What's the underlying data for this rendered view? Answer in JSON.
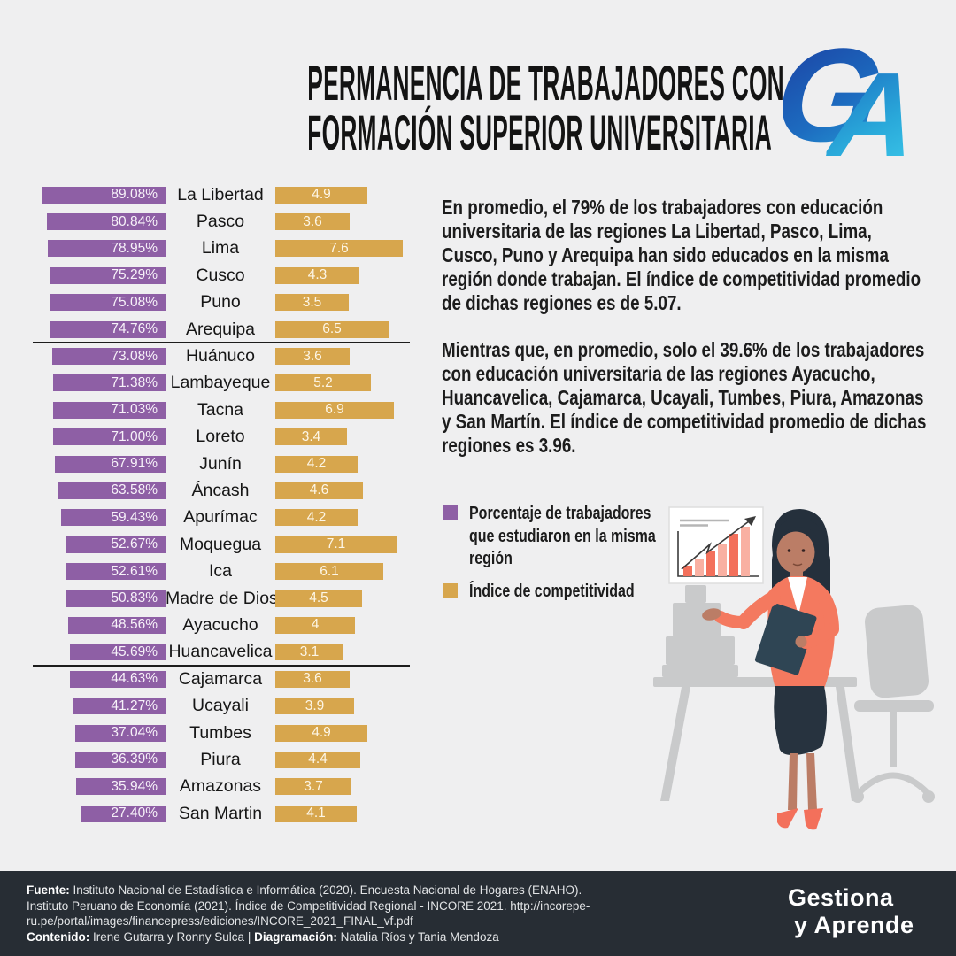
{
  "header": {
    "title_line1": "PERMANENCIA DE TRABAJADORES CON",
    "title_line2": "FORMACIÓN SUPERIOR UNIVERSITARIA",
    "logo": {
      "g": "G",
      "a": "A"
    }
  },
  "chart_data": {
    "type": "bar",
    "title": "Permanencia de trabajadores con formación superior universitaria",
    "categories": [
      "La Libertad",
      "Pasco",
      "Lima",
      "Cusco",
      "Puno",
      "Arequipa",
      "Huánuco",
      "Lambayeque",
      "Tacna",
      "Loreto",
      "Junín",
      "Áncash",
      "Apurímac",
      "Moquegua",
      "Ica",
      "Madre de Dios",
      "Ayacucho",
      "Huancavelica",
      "Cajamarca",
      "Ucayali",
      "Tumbes",
      "Piura",
      "Amazonas",
      "San Martin"
    ],
    "series": [
      {
        "name": "Porcentaje de trabajadores que estudiaron en la misma región",
        "color": "#8e5fa5",
        "values": [
          89.08,
          80.84,
          78.95,
          75.29,
          75.08,
          74.76,
          73.08,
          71.38,
          71.03,
          71.0,
          67.91,
          63.58,
          59.43,
          52.67,
          52.61,
          50.83,
          48.56,
          45.69,
          44.63,
          41.27,
          37.04,
          36.39,
          35.94,
          27.4
        ],
        "labels": [
          "89.08%",
          "80.84%",
          "78.95%",
          "75.29%",
          "75.08%",
          "74.76%",
          "73.08%",
          "71.38%",
          "71.03%",
          "71.00%",
          "67.91%",
          "63.58%",
          "59.43%",
          "52.67%",
          "52.61%",
          "50.83%",
          "48.56%",
          "45.69%",
          "44.63%",
          "41.27%",
          "37.04%",
          "36.39%",
          "35.94%",
          "27.40%"
        ]
      },
      {
        "name": "Índice de competitividad",
        "color": "#d7a64d",
        "values": [
          4.9,
          3.6,
          7.6,
          4.3,
          3.5,
          6.5,
          3.6,
          5.2,
          6.9,
          3.4,
          4.2,
          4.6,
          4.2,
          7.1,
          6.1,
          4.5,
          4.0,
          3.1,
          3.6,
          3.9,
          4.9,
          4.4,
          3.7,
          4.1
        ],
        "labels": [
          "4.9",
          "3.6",
          "7.6",
          "4.3",
          "3.5",
          "6.5",
          "3.6",
          "5.2",
          "6.9",
          "3.4",
          "4.2",
          "4.6",
          "4.2",
          "7.1",
          "6.1",
          "4.5",
          "4",
          "3.1",
          "3.6",
          "3.9",
          "4.9",
          "4.4",
          "3.7",
          "4.1"
        ]
      }
    ],
    "group_separator_after_indices": [
      5,
      17
    ],
    "legend_position": "right",
    "grid": false
  },
  "insights": {
    "p1": "En promedio, el 79% de los trabajadores con educación universitaria  de las regiones La Libertad, Pasco, Lima, Cusco, Puno y Arequipa han sido educados en la misma región donde trabajan. El índice de competitividad promedio de dichas regiones es de 5.07.",
    "p2": "Mientras que, en promedio, solo el 39.6% de los trabajadores con educación universitaria de las regiones Ayacucho, Huancavelica, Cajamarca, Ucayali, Tumbes, Piura, Amazonas y San Martín. El índice de competitividad promedio de dichas regiones es 3.96."
  },
  "legend": {
    "items": [
      {
        "label": "Porcentaje de trabajadores que estudiaron en la misma región",
        "color": "#8e5fa5"
      },
      {
        "label": "Índice de competitividad",
        "color": "#d7a64d"
      }
    ]
  },
  "footer": {
    "fuente_label": "Fuente:",
    "fuente_line1": " Instituto Nacional de Estadística e Informática (2020). Encuesta Nacional de Hogares (ENAHO).",
    "fuente_line2": "Instituto Peruano de Economía (2021). Índice de Competitividad Regional - INCORE 2021. http://incorepe-",
    "fuente_line3": "ru.pe/portal/images/financepress/ediciones/INCORE_2021_FINAL_vf.pdf",
    "contenido_label": "Contenido:",
    "contenido_text": "  Irene Gutarra y Ronny Sulca | ",
    "diagramacion_label": "Diagramación:",
    "diagramacion_text": " Natalia Ríos y Tania Mendoza",
    "brand_line1": "Gestiona",
    "brand_line2": "y Aprende"
  },
  "colors": {
    "background": "#efeff0",
    "footer_background": "#272d34",
    "percentage_bar": "#8e5fa5",
    "index_bar": "#d7a64d",
    "separator": "#1c1c1c",
    "illustration_gray": "#c9cacb",
    "illustration_coral": "#f4795f",
    "illustration_navy": "#27333f"
  }
}
